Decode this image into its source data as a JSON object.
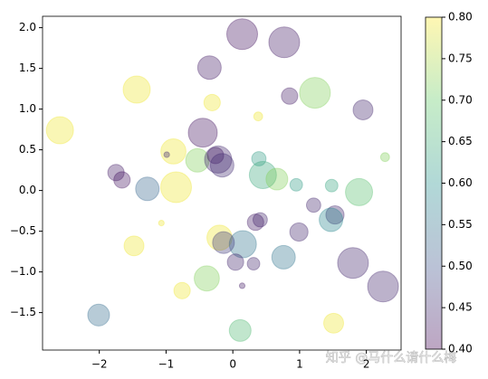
{
  "chart_data": {
    "type": "scatter",
    "x": [
      0.14,
      0.77,
      -0.35,
      -1.44,
      1.23,
      0.85,
      -0.31,
      1.95,
      0.38,
      -2.59,
      -0.45,
      -0.89,
      -0.99,
      -0.53,
      -0.26,
      -0.22,
      -0.16,
      0.39,
      2.28,
      -1.75,
      -1.66,
      0.45,
      0.66,
      -1.28,
      -0.85,
      0.95,
      1.48,
      1.89,
      1.21,
      1.53,
      1.47,
      0.41,
      0.34,
      -1.07,
      0.99,
      -0.2,
      0.15,
      -0.14,
      -1.48,
      0.76,
      1.8,
      0.04,
      0.31,
      -0.39,
      0.14,
      2.25,
      -0.76,
      -2.01,
      1.51,
      0.11
    ],
    "y": [
      1.92,
      1.82,
      1.51,
      1.24,
      1.2,
      1.16,
      1.08,
      0.99,
      0.91,
      0.74,
      0.71,
      0.48,
      0.44,
      0.37,
      0.43,
      0.38,
      0.31,
      0.39,
      0.41,
      0.22,
      0.13,
      0.19,
      0.14,
      0.02,
      0.04,
      0.07,
      0.06,
      -0.02,
      -0.18,
      -0.3,
      -0.36,
      -0.36,
      -0.39,
      -0.4,
      -0.51,
      -0.58,
      -0.66,
      -0.64,
      -0.68,
      -0.82,
      -0.89,
      -0.88,
      -0.9,
      -1.08,
      -1.17,
      -1.18,
      -1.23,
      -1.53,
      -1.63,
      -1.72
    ],
    "sizes": [
      600,
      600,
      350,
      465,
      600,
      170,
      170,
      250,
      50,
      465,
      530,
      400,
      20,
      350,
      170,
      465,
      350,
      130,
      50,
      170,
      170,
      465,
      300,
      350,
      600,
      100,
      100,
      465,
      130,
      210,
      350,
      130,
      170,
      20,
      210,
      400,
      465,
      300,
      250,
      350,
      600,
      170,
      100,
      400,
      20,
      600,
      170,
      300,
      250,
      300
    ],
    "colors": [
      0.42,
      0.43,
      0.43,
      0.79,
      0.72,
      0.43,
      0.79,
      0.44,
      0.79,
      0.79,
      0.42,
      0.79,
      0.45,
      0.72,
      0.42,
      0.44,
      0.45,
      0.62,
      0.72,
      0.43,
      0.42,
      0.64,
      0.72,
      0.53,
      0.79,
      0.62,
      0.63,
      0.68,
      0.44,
      0.44,
      0.58,
      0.44,
      0.43,
      0.79,
      0.44,
      0.79,
      0.55,
      0.47,
      0.79,
      0.55,
      0.44,
      0.44,
      0.44,
      0.72,
      0.43,
      0.44,
      0.79,
      0.54,
      0.79,
      0.67
    ],
    "colormap": "viridis",
    "alpha": 0.35,
    "xlim": [
      -2.85,
      2.52
    ],
    "xticks": [
      {
        "value": -2,
        "label": "−2"
      },
      {
        "value": -1,
        "label": "−1"
      },
      0,
      1,
      2
    ],
    "ylim": [
      -1.96,
      2.14
    ],
    "yticks": [
      {
        "value": -1.5,
        "label": "−1.5"
      },
      {
        "value": -1,
        "label": "−1.0"
      },
      {
        "value": -0.5,
        "label": "−0.5"
      },
      {
        "value": 0,
        "label": "0.0"
      },
      {
        "value": 0.5,
        "label": "0.5"
      },
      {
        "value": 1,
        "label": "1.0"
      },
      {
        "value": 1.5,
        "label": "1.5"
      },
      {
        "value": 2,
        "label": "2.0"
      }
    ],
    "clim": [
      0.4,
      0.8
    ],
    "cticks": [
      {
        "value": 0.4,
        "label": "0.40"
      },
      {
        "value": 0.45,
        "label": "0.45"
      },
      {
        "value": 0.5,
        "label": "0.50"
      },
      {
        "value": 0.55,
        "label": "0.55"
      },
      {
        "value": 0.6,
        "label": "0.60"
      },
      {
        "value": 0.65,
        "label": "0.65"
      },
      {
        "value": 0.7,
        "label": "0.70"
      },
      {
        "value": 0.75,
        "label": "0.75"
      },
      {
        "value": 0.8,
        "label": "0.80"
      }
    ],
    "watermark": "知乎 @马什么请什么梅"
  }
}
